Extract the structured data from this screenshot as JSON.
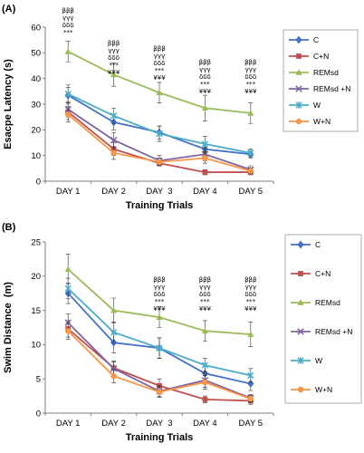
{
  "chart_data": [
    {
      "type": "line",
      "panel_label": "(A)",
      "xlabel": "Training Trials",
      "ylabel": "Esacpe Latency (s)",
      "categories": [
        "DAY 1",
        "DAY 2",
        "DAY  3",
        "DAY 4",
        "DAY 5"
      ],
      "ylim": [
        0,
        60
      ],
      "yticks": [
        0,
        10,
        20,
        30,
        40,
        50,
        60
      ],
      "grid": false,
      "legend_position": "right",
      "series": [
        {
          "name": "C",
          "color": "#4472C4",
          "marker": "diamond",
          "values": [
            33.5,
            23,
            19,
            12.5,
            10.5
          ],
          "errors": [
            3,
            3,
            2.5,
            2,
            1.5
          ]
        },
        {
          "name": "C+N",
          "color": "#C0504D",
          "marker": "square",
          "values": [
            27,
            12.5,
            7,
            3.5,
            3.5
          ],
          "errors": [
            3,
            2.5,
            1,
            1,
            1
          ]
        },
        {
          "name": "REMsd",
          "color": "#9BBB59",
          "marker": "triangle",
          "values": [
            50.5,
            41.5,
            34.5,
            28.5,
            26.5
          ],
          "errors": [
            4,
            4.5,
            4,
            5,
            4
          ]
        },
        {
          "name": "REMsd +N",
          "color": "#8064A2",
          "marker": "x",
          "values": [
            28,
            16,
            8,
            10.5,
            4.5
          ],
          "errors": [
            3,
            3,
            2,
            2.5,
            1.5
          ]
        },
        {
          "name": "W",
          "color": "#4BACC6",
          "marker": "star",
          "values": [
            34,
            25.5,
            18.5,
            14.5,
            11
          ],
          "errors": [
            3.5,
            3,
            3,
            3,
            1.5
          ]
        },
        {
          "name": "W+N",
          "color": "#F79646",
          "marker": "circle",
          "values": [
            26,
            11,
            7.5,
            9,
            4
          ],
          "errors": [
            3,
            2.5,
            1.5,
            2,
            1
          ]
        }
      ],
      "annotations": [
        {
          "category": "DAY 1",
          "lines": [
            "βββ",
            "γγγ",
            "δδδ",
            "***"
          ]
        },
        {
          "category": "DAY 2",
          "lines": [
            "βββ",
            "γγγ",
            "δδδ",
            "***",
            "¥¥¥"
          ]
        },
        {
          "category": "DAY  3",
          "lines": [
            "βββ",
            "γγγ",
            "δδδ",
            "***",
            "¥¥¥"
          ]
        },
        {
          "category": "DAY 4",
          "lines": [
            "βββ",
            "γγγ",
            "δδδ",
            "***",
            "¥¥¥"
          ]
        },
        {
          "category": "DAY 5",
          "lines": [
            "βββ",
            "γγγ",
            "δδδ",
            "***",
            "¥¥¥"
          ]
        }
      ]
    },
    {
      "type": "line",
      "panel_label": "(B)",
      "xlabel": "Training Trials",
      "ylabel": "Swim Distance  (m)",
      "categories": [
        "DAY 1",
        "DAY 2",
        "DAY  3",
        "DAY 4",
        "DAY 5"
      ],
      "ylim": [
        0,
        25
      ],
      "yticks": [
        0,
        5,
        10,
        15,
        20,
        25
      ],
      "grid": false,
      "legend_position": "right",
      "series": [
        {
          "name": "C",
          "color": "#4472C4",
          "marker": "diamond",
          "values": [
            17.5,
            10.3,
            9.5,
            5.8,
            4.3
          ],
          "errors": [
            1.5,
            1.5,
            1.5,
            1,
            1
          ]
        },
        {
          "name": "C+N",
          "color": "#C0504D",
          "marker": "square",
          "values": [
            12.3,
            6.6,
            4,
            2,
            1.8
          ],
          "errors": [
            1.2,
            1,
            1,
            0.5,
            0.5
          ]
        },
        {
          "name": "REMsd",
          "color": "#9BBB59",
          "marker": "triangle",
          "values": [
            21,
            15,
            14,
            12,
            11.5
          ],
          "errors": [
            2.2,
            1.8,
            1.5,
            1.5,
            1.8
          ]
        },
        {
          "name": "REMsd +N",
          "color": "#8064A2",
          "marker": "x",
          "values": [
            13.2,
            6.5,
            3.2,
            4.8,
            2.2
          ],
          "errors": [
            1.3,
            1,
            0.8,
            1,
            0.5
          ]
        },
        {
          "name": "W",
          "color": "#4BACC6",
          "marker": "star",
          "values": [
            18.2,
            11.8,
            9.5,
            7,
            5.5
          ],
          "errors": [
            1.5,
            1.5,
            1.5,
            1,
            1
          ]
        },
        {
          "name": "W+N",
          "color": "#F79646",
          "marker": "circle",
          "values": [
            12,
            5.4,
            3.1,
            4.5,
            2.1
          ],
          "errors": [
            1.2,
            1,
            0.8,
            1,
            0.5
          ]
        }
      ],
      "annotations": [
        {
          "category": "DAY  3",
          "lines": [
            "βββ",
            "γγγ",
            "δδδ",
            "***",
            "¥¥¥"
          ]
        },
        {
          "category": "DAY 4",
          "lines": [
            "βββ",
            "γγγ",
            "δδδ",
            "***",
            "¥¥¥"
          ]
        },
        {
          "category": "DAY 5",
          "lines": [
            "βββ",
            "γγγ",
            "δδδ",
            "***",
            "¥¥¥"
          ]
        }
      ]
    }
  ]
}
